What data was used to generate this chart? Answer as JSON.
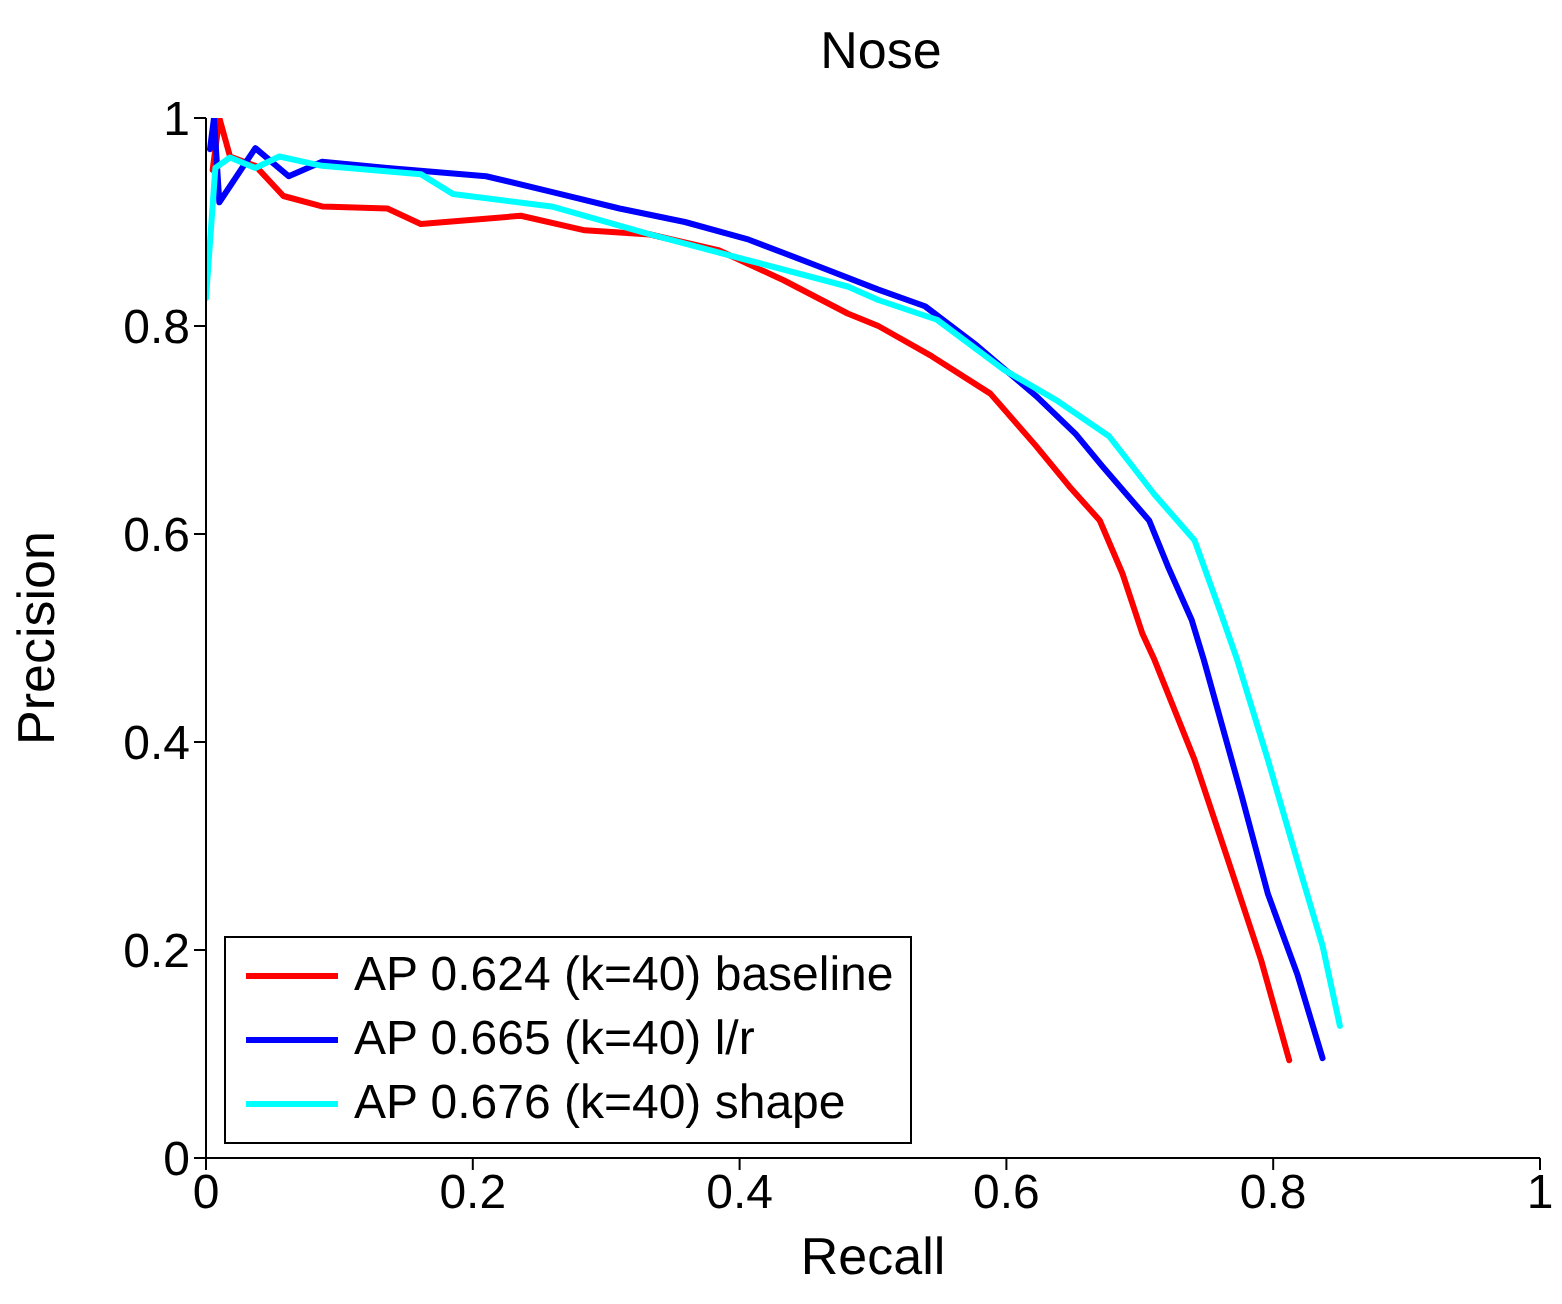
{
  "chart_data": {
    "type": "line",
    "title": "Nose",
    "xlabel": "Recall",
    "ylabel": "Precision",
    "xlim": [
      0,
      1
    ],
    "ylim": [
      0,
      1
    ],
    "xticks": [
      0,
      0.2,
      0.4,
      0.6,
      0.8,
      1
    ],
    "yticks": [
      0,
      0.2,
      0.4,
      0.6,
      0.8,
      1
    ],
    "grid": false,
    "legend": "bottom left",
    "marker": "none",
    "line_style": "solid",
    "series": [
      {
        "name": "AP 0.624 (k=40) baseline",
        "color": "#ff0000",
        "x": [
          0.005,
          0.01,
          0.018,
          0.037,
          0.058,
          0.087,
          0.136,
          0.161,
          0.236,
          0.284,
          0.333,
          0.384,
          0.433,
          0.481,
          0.504,
          0.544,
          0.588,
          0.622,
          0.647,
          0.67,
          0.687,
          0.702,
          0.711,
          0.741,
          0.766,
          0.791,
          0.812
        ],
        "values": [
          0.95,
          1,
          0.963,
          0.954,
          0.925,
          0.915,
          0.913,
          0.898,
          0.906,
          0.892,
          0.888,
          0.873,
          0.844,
          0.812,
          0.8,
          0.771,
          0.735,
          0.685,
          0.646,
          0.613,
          0.562,
          0.504,
          0.479,
          0.383,
          0.287,
          0.19,
          0.094
        ]
      },
      {
        "name": "AP 0.665 (k=40) l/r",
        "color": "#0000ff",
        "x": [
          0.003,
          0.006,
          0.01,
          0.037,
          0.062,
          0.087,
          0.136,
          0.21,
          0.259,
          0.31,
          0.359,
          0.407,
          0.458,
          0.504,
          0.539,
          0.578,
          0.622,
          0.652,
          0.672,
          0.707,
          0.721,
          0.739,
          0.748,
          0.776,
          0.796,
          0.818,
          0.837
        ],
        "values": [
          0.97,
          1,
          0.919,
          0.971,
          0.944,
          0.958,
          0.952,
          0.944,
          0.929,
          0.913,
          0.9,
          0.883,
          0.858,
          0.835,
          0.819,
          0.781,
          0.733,
          0.696,
          0.665,
          0.613,
          0.569,
          0.517,
          0.479,
          0.35,
          0.254,
          0.177,
          0.096
        ]
      },
      {
        "name": "AP 0.676 (k=40) shape",
        "color": "#00ffff",
        "x": [
          0,
          0.007,
          0.018,
          0.037,
          0.055,
          0.087,
          0.161,
          0.185,
          0.259,
          0.333,
          0.407,
          0.481,
          0.504,
          0.548,
          0.598,
          0.637,
          0.677,
          0.711,
          0.741,
          0.761,
          0.773,
          0.796,
          0.821,
          0.837,
          0.85
        ],
        "values": [
          0.827,
          0.952,
          0.962,
          0.952,
          0.963,
          0.954,
          0.946,
          0.927,
          0.915,
          0.888,
          0.863,
          0.838,
          0.825,
          0.806,
          0.758,
          0.729,
          0.694,
          0.638,
          0.594,
          0.523,
          0.479,
          0.383,
          0.273,
          0.204,
          0.127
        ]
      }
    ]
  }
}
